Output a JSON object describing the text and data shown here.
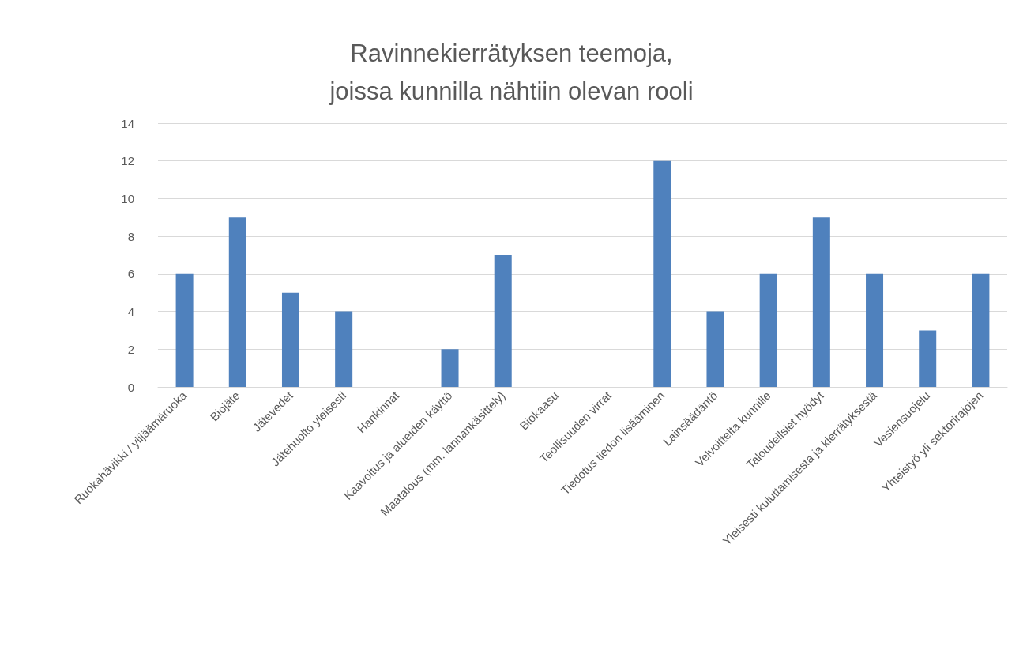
{
  "chart_data": {
    "type": "bar",
    "title": "Ravinnekierrätyksen teemoja,\njoissa kunnilla nähtiin olevan rooli",
    "categories": [
      "Ruokahävikki / ylijäämäruoka",
      "Biojäte",
      "Jätevedet",
      "Jätehuolto yleisesti",
      "Hankinnat",
      "Kaavoitus ja alueiden käyttö",
      "Maatalous (mm. lannankäsittely)",
      "Biokaasu",
      "Teollisuuden virrat",
      "Tiedotus tiedon lisääminen",
      "Lainsäädäntö",
      "Velvoitteita kunnille",
      "Taloudellsiet hyödyt",
      "Yleisesti kuluttamisesta ja kierrätyksestä",
      "Vesiensuojelu",
      "Yhteistyö yli sektorirajojen"
    ],
    "values": [
      6,
      9,
      5,
      4,
      0,
      2,
      7,
      0,
      0,
      12,
      4,
      6,
      9,
      6,
      3,
      6
    ],
    "color": "#4f81bd",
    "ylim": [
      0,
      14
    ],
    "yticks": [
      0,
      2,
      4,
      6,
      8,
      10,
      12,
      14
    ],
    "grid": "y"
  }
}
